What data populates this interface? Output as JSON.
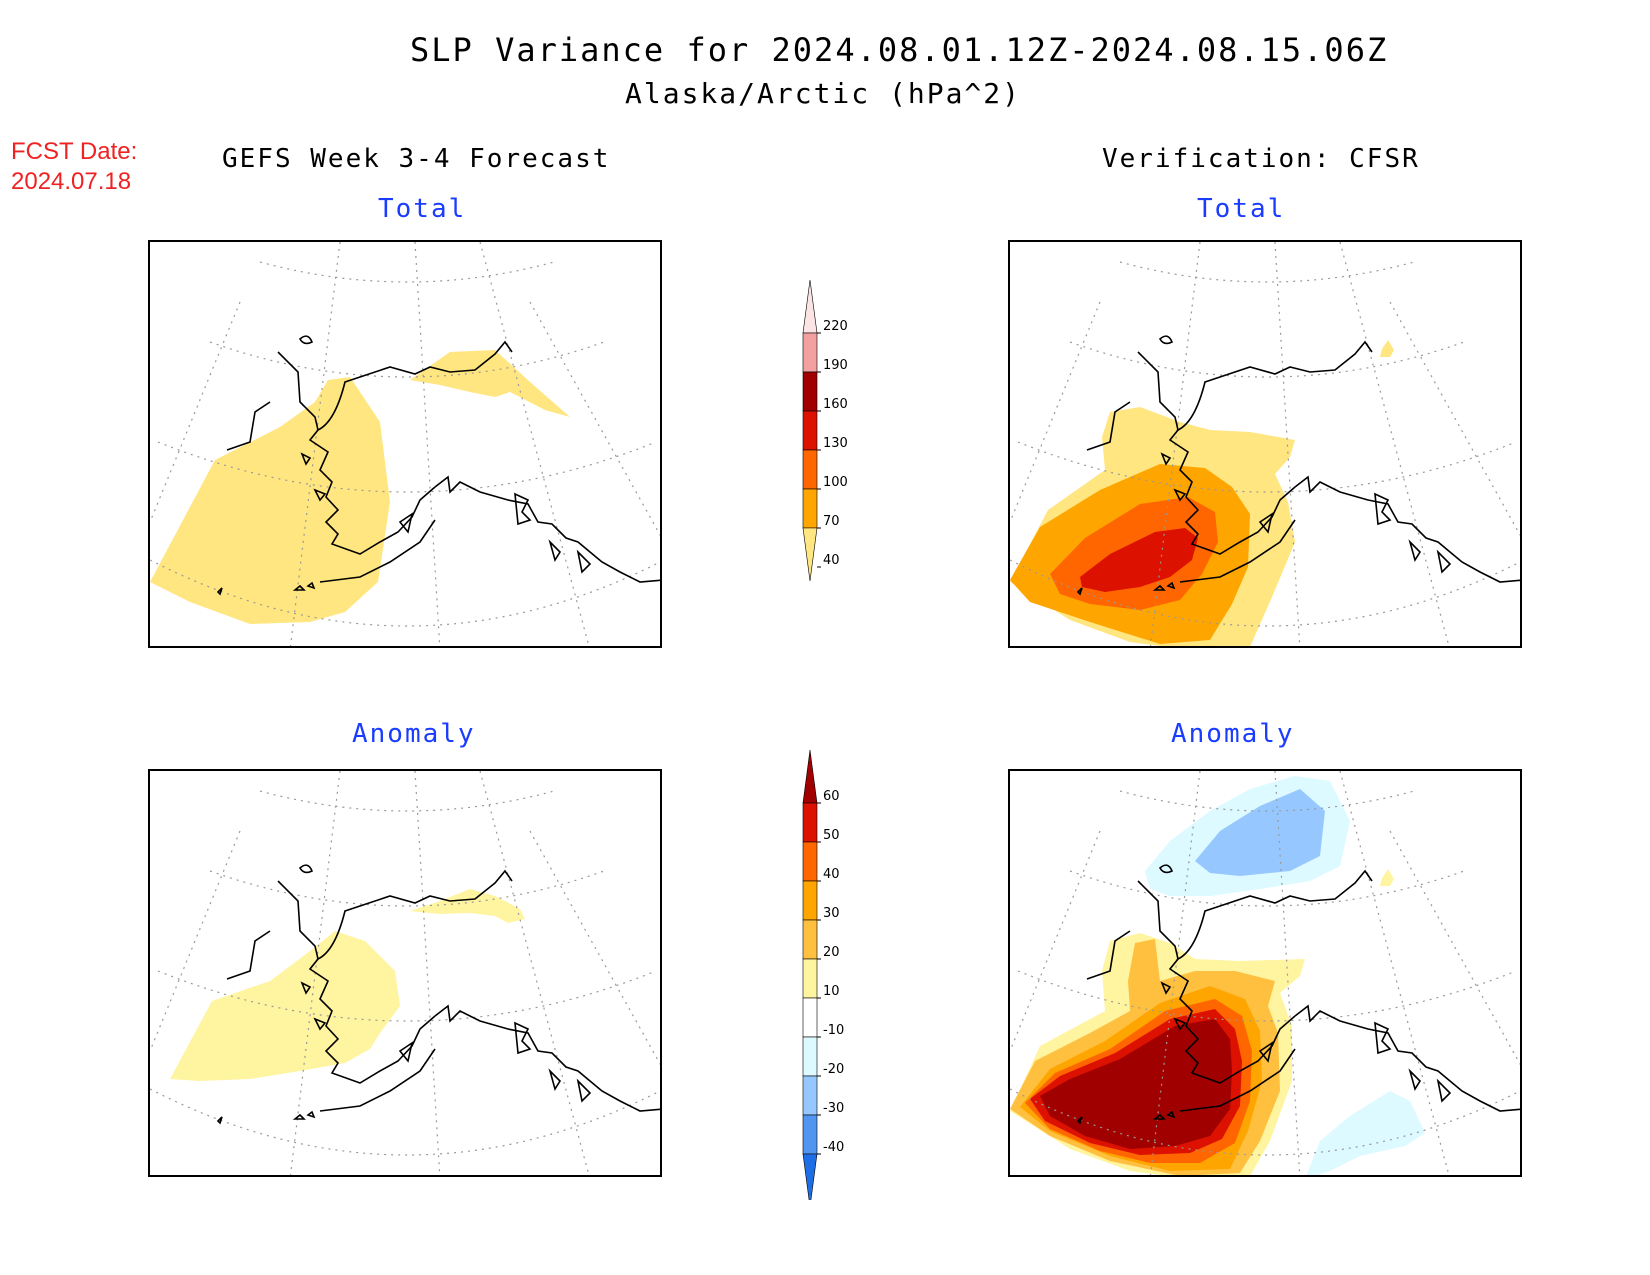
{
  "header": {
    "title": "SLP Variance for 2024.08.01.12Z-2024.08.15.06Z",
    "subtitle": "Alaska/Arctic (hPa^2)",
    "fcst_date_label": "FCST Date:",
    "fcst_date_value": "2024.07.18"
  },
  "columns": {
    "left": "GEFS Week 3-4 Forecast",
    "right": "Verification: CFSR"
  },
  "panels": {
    "fcst_total": "Total",
    "verif_total": "Total",
    "fcst_anomaly": "Anomaly",
    "verif_anomaly": "Anomaly"
  },
  "colorbar_total": {
    "levels": [
      "220",
      "190",
      "160",
      "130",
      "100",
      "70",
      "40"
    ],
    "colors": [
      "#fce4e4",
      "#f2a0a0",
      "#a00000",
      "#dd1100",
      "#ff6600",
      "#ffa500",
      "#ffe680"
    ]
  },
  "colorbar_anomaly": {
    "levels": [
      "60",
      "50",
      "40",
      "30",
      "20",
      "10",
      "-10",
      "-20",
      "-30",
      "-40"
    ],
    "colors": [
      "#a00000",
      "#dd1100",
      "#ff6600",
      "#ffa500",
      "#ffc040",
      "#fff4a0",
      "#ffffff",
      "#dcfaff",
      "#96c8ff",
      "#5096f0",
      "#1e6ee6"
    ]
  },
  "fill_colors": {
    "c40": "#ffe680",
    "c70": "#ffa500",
    "c100": "#ff6600",
    "c130": "#dd1100",
    "a10": "#fff4a0",
    "a20": "#ffc040",
    "a30": "#ffa500",
    "a40": "#ff6600",
    "a50": "#dd1100",
    "a60": "#a00000",
    "n10": "#dcfaff",
    "n20": "#96c8ff"
  }
}
